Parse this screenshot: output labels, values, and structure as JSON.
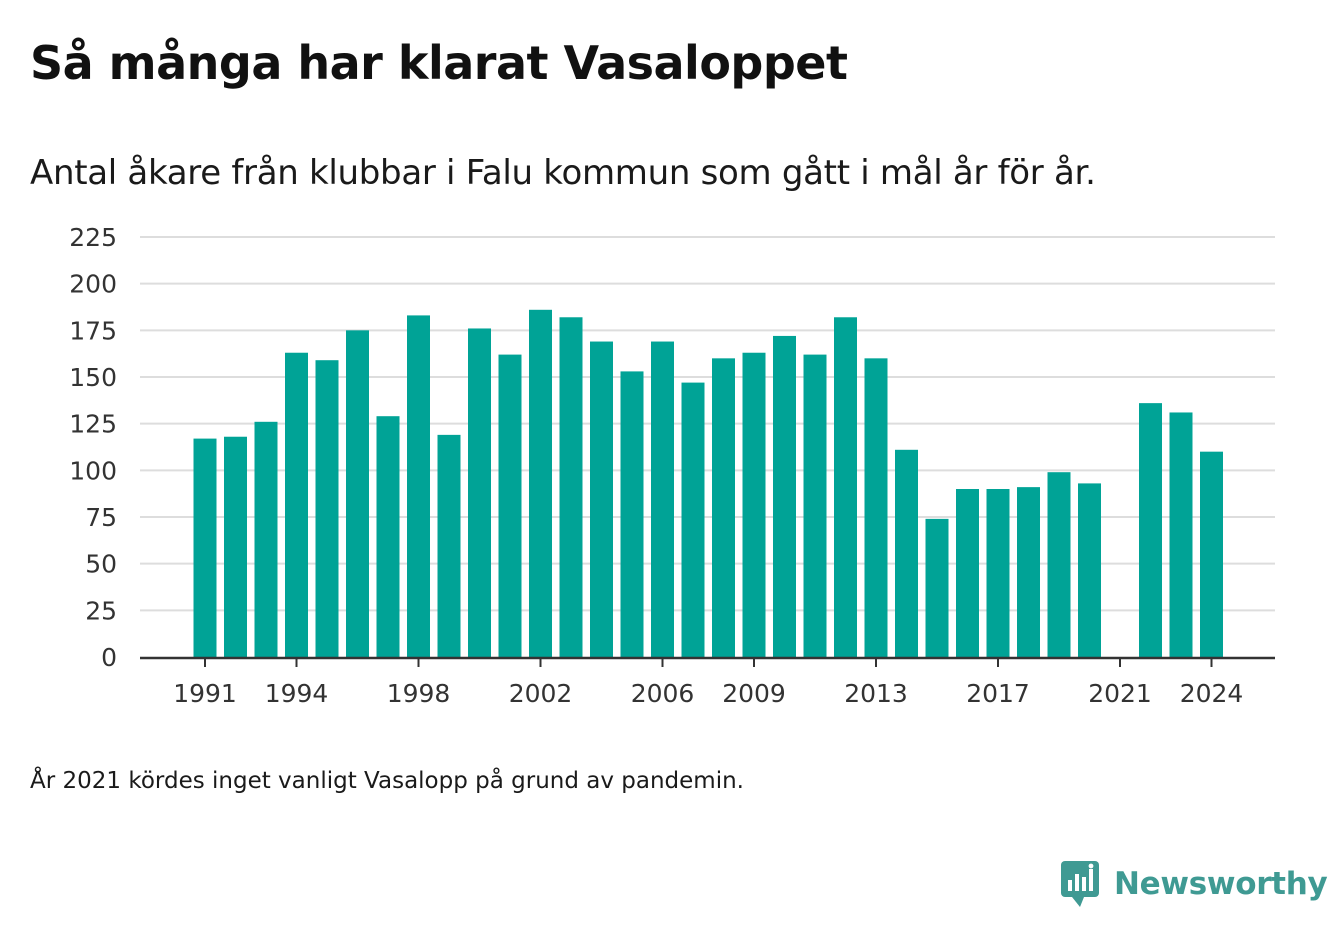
{
  "title": "Så många har klarat Vasaloppet",
  "subtitle": "Antal åkare från klubbar i Falu kommun som gått i mål år för år.",
  "note": "År 2021 kördes inget vanligt Vasalopp på grund av pandemin.",
  "brand": {
    "name": "Newsworthy",
    "logo_icon": "bar-chart-speech-bubble-icon",
    "color": "#3f9a93"
  },
  "chart_data": {
    "type": "bar",
    "bar_color": "#00a396",
    "grid": true,
    "ylim": [
      0,
      225
    ],
    "yticks": [
      0,
      25,
      50,
      75,
      100,
      125,
      150,
      175,
      200,
      225
    ],
    "xticks": [
      1991,
      1994,
      1998,
      2002,
      2006,
      2009,
      2013,
      2017,
      2021,
      2024
    ],
    "x": [
      1991,
      1992,
      1993,
      1994,
      1995,
      1996,
      1997,
      1998,
      1999,
      2000,
      2001,
      2002,
      2003,
      2004,
      2005,
      2006,
      2007,
      2008,
      2009,
      2010,
      2011,
      2012,
      2013,
      2014,
      2015,
      2016,
      2017,
      2018,
      2019,
      2020,
      2021,
      2022,
      2023,
      2024
    ],
    "values": [
      117,
      118,
      126,
      163,
      159,
      175,
      129,
      183,
      119,
      176,
      162,
      186,
      182,
      169,
      153,
      169,
      147,
      160,
      163,
      172,
      162,
      182,
      160,
      111,
      74,
      90,
      90,
      91,
      99,
      93,
      null,
      136,
      131,
      110
    ]
  }
}
